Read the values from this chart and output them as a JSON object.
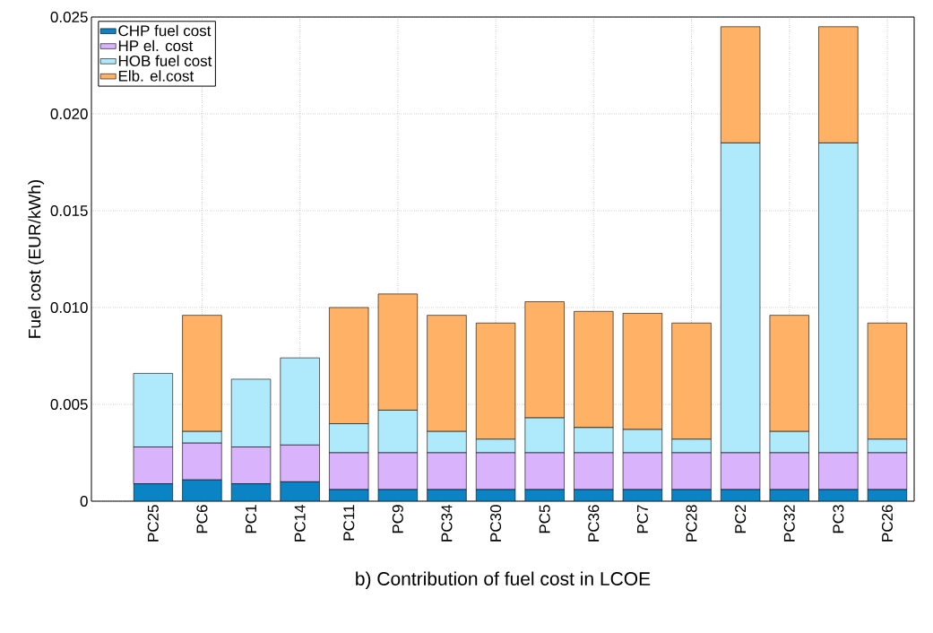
{
  "chart_data": {
    "type": "bar",
    "stacked": true,
    "xlabel": "b) Contribution of fuel cost in LCOE",
    "ylabel": "Fuel cost (EUR/kWh)",
    "categories": [
      "PC25",
      "PC6",
      "PC1",
      "PC14",
      "PC11",
      "PC9",
      "PC34",
      "PC30",
      "PC5",
      "PC36",
      "PC7",
      "PC28",
      "PC2",
      "PC32",
      "PC3",
      "PC26"
    ],
    "series": [
      {
        "name": "CHP fuel cost",
        "color": "#0b84c6",
        "values": [
          0.0009,
          0.0011,
          0.0009,
          0.001,
          0.0006,
          0.0006,
          0.0006,
          0.0006,
          0.0006,
          0.0006,
          0.0006,
          0.0006,
          0.0006,
          0.0006,
          0.0006,
          0.0006
        ]
      },
      {
        "name": "HP el. cost",
        "color": "#dab3fd",
        "values": [
          0.0019,
          0.0019,
          0.0019,
          0.0019,
          0.0019,
          0.0019,
          0.0019,
          0.0019,
          0.0019,
          0.0019,
          0.0019,
          0.0019,
          0.0019,
          0.0019,
          0.0019,
          0.0019
        ]
      },
      {
        "name": "HOB fuel cost",
        "color": "#aeeafc",
        "values": [
          0.0038,
          0.0006,
          0.0035,
          0.0045,
          0.0015,
          0.0022,
          0.0011,
          0.0007,
          0.0018,
          0.0013,
          0.0012,
          0.0007,
          0.016,
          0.0011,
          0.016,
          0.0007
        ]
      },
      {
        "name": "Elb. el.cost",
        "color": "#ffb266",
        "values": [
          0,
          0.006,
          0,
          0,
          0.006,
          0.006,
          0.006,
          0.006,
          0.006,
          0.006,
          0.006,
          0.006,
          0.006,
          0.006,
          0.006,
          0.006
        ]
      }
    ],
    "ylim": [
      0,
      0.025
    ],
    "yticks": [
      {
        "value": 0,
        "label": "0"
      },
      {
        "value": 0.005,
        "label": "0.005"
      },
      {
        "value": 0.01,
        "label": "0.010"
      },
      {
        "value": 0.015,
        "label": "0.015"
      },
      {
        "value": 0.02,
        "label": "0.020"
      },
      {
        "value": 0.025,
        "label": "0.025"
      }
    ],
    "grid": true,
    "legend": "top left"
  }
}
